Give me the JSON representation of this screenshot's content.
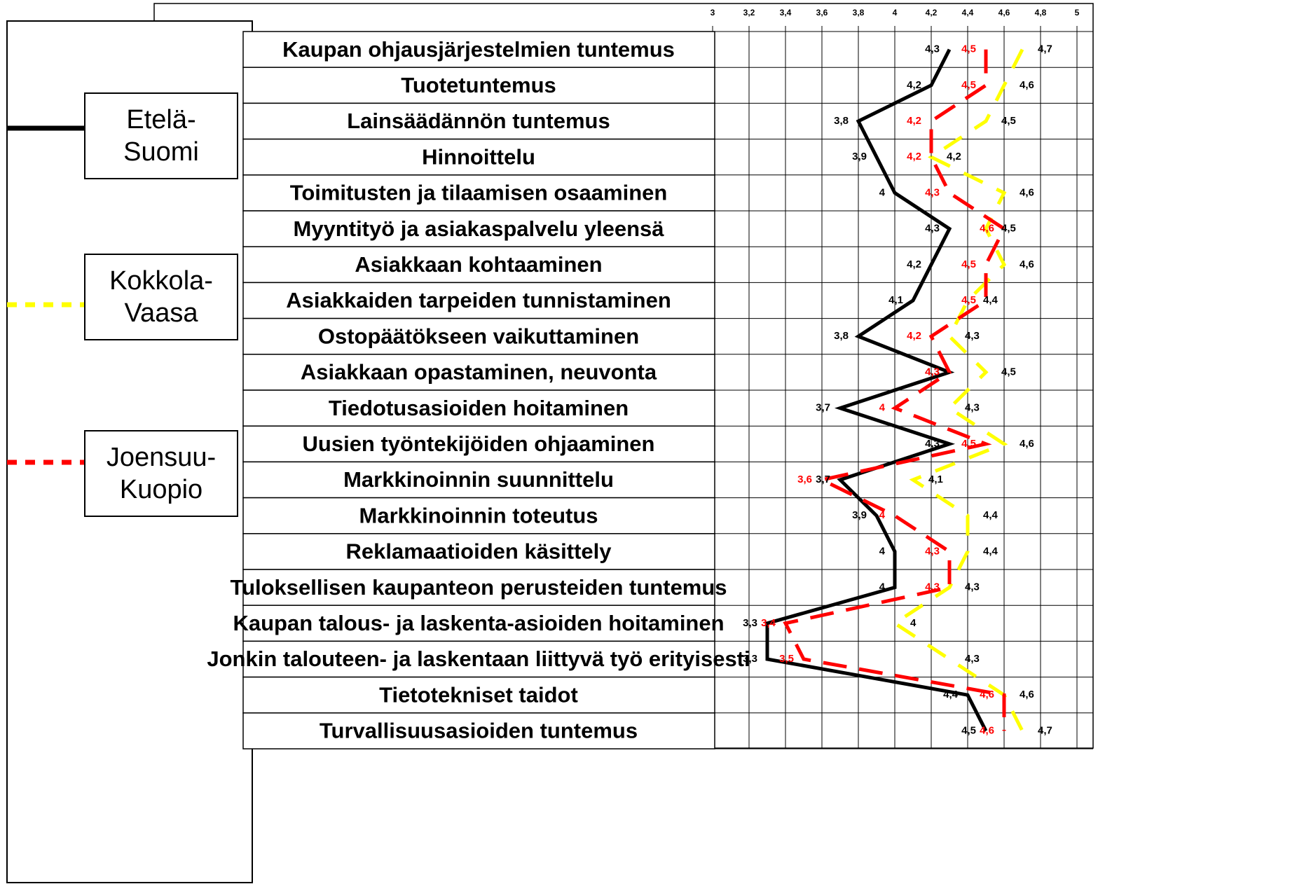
{
  "chart_data": {
    "type": "line",
    "orientation": "horizontal",
    "categories": [
      "Kaupan ohjausjärjestelmien tuntemus",
      "Tuotetuntemus",
      "Lainsäädännön tuntemus",
      "Hinnoittelu",
      "Toimitusten ja tilaamisen osaaminen",
      "Myyntityö ja asiakaspalvelu yleensä",
      "Asiakkaan kohtaaminen",
      "Asiakkaiden tarpeiden tunnistaminen",
      "Ostopäätökseen vaikuttaminen",
      "Asiakkaan opastaminen, neuvonta",
      "Tiedotusasioiden hoitaminen",
      "Uusien työntekijöiden ohjaaminen",
      "Markkinoinnin suunnittelu",
      "Markkinoinnin toteutus",
      "Reklamaatioiden käsittely",
      "Tuloksellisen kaupanteon perusteiden tuntemus",
      "Kaupan talous- ja laskenta-asioiden hoitaminen",
      "Jonkin talouteen- ja laskentaan liittyvä työ erityisesti",
      "Tietotekniset taidot",
      "Turvallisuusasioiden tuntemus"
    ],
    "series": [
      {
        "name": "Etelä-Suomi",
        "color": "#000000",
        "dashed": false,
        "values": [
          4.3,
          4.2,
          3.8,
          3.9,
          4,
          4.3,
          4.2,
          4.1,
          3.8,
          4.3,
          3.7,
          4.3,
          3.7,
          3.9,
          4,
          4,
          3.3,
          3.3,
          4.4,
          4.5
        ],
        "value_labels": [
          "4,3",
          "4,2",
          "3,8",
          "3,9",
          "4",
          "4,3",
          "4,2",
          "4,1",
          "3,8",
          "4,3",
          "3,7",
          "4,3",
          "3,7",
          "3,9",
          "4",
          "4",
          "3,3",
          "3,3",
          "4,4",
          "4,5"
        ]
      },
      {
        "name": "Kokkola-Vaasa",
        "color": "#ffff00",
        "dashed": true,
        "values": [
          4.7,
          4.6,
          4.5,
          4.2,
          4.6,
          4.5,
          4.6,
          4.4,
          4.3,
          4.5,
          4.3,
          4.6,
          4.1,
          4.4,
          4.4,
          4.3,
          4,
          4.3,
          4.6,
          4.7
        ],
        "value_labels": [
          "4,7",
          "4,6",
          "4,5",
          "4,2",
          "4,6",
          "4,5",
          "4,6",
          "4,4",
          "4,3",
          "4,5",
          "4,3",
          "4,6",
          "4,1",
          "4,4",
          "4,4",
          "4,3",
          "4",
          "4,3",
          "4,6",
          "4,7"
        ]
      },
      {
        "name": "Joensuu-Kuopio",
        "color": "#ff0000",
        "dashed": true,
        "values": [
          4.5,
          4.5,
          4.2,
          4.2,
          4.3,
          4.6,
          4.5,
          4.5,
          4.2,
          4.3,
          4,
          4.5,
          3.6,
          4,
          4.3,
          4.3,
          3.4,
          3.5,
          4.6,
          4.6
        ],
        "value_labels": [
          "4,5",
          "4,5",
          "4,2",
          "4,2",
          "4,3",
          "4,6",
          "4,5",
          "4,5",
          "4,2",
          "4,3",
          "4",
          "4,5",
          "3,6",
          "4",
          "4,3",
          "4,3",
          "3,4",
          "3,5",
          "4,6",
          "4,6"
        ]
      }
    ],
    "xlim": [
      3,
      5
    ],
    "xticks": [
      3,
      {
        "value": 3.2,
        "label": "3,2"
      },
      {
        "value": 3.4,
        "label": "3,4"
      },
      {
        "value": 3.6,
        "label": "3,6"
      },
      {
        "value": 3.8,
        "label": "3,8"
      },
      4,
      {
        "value": 4.2,
        "label": "4,2"
      },
      {
        "value": 4.4,
        "label": "4,4"
      },
      {
        "value": 4.6,
        "label": "4,6"
      },
      {
        "value": 4.8,
        "label": "4,8"
      },
      5
    ],
    "grid": true
  }
}
